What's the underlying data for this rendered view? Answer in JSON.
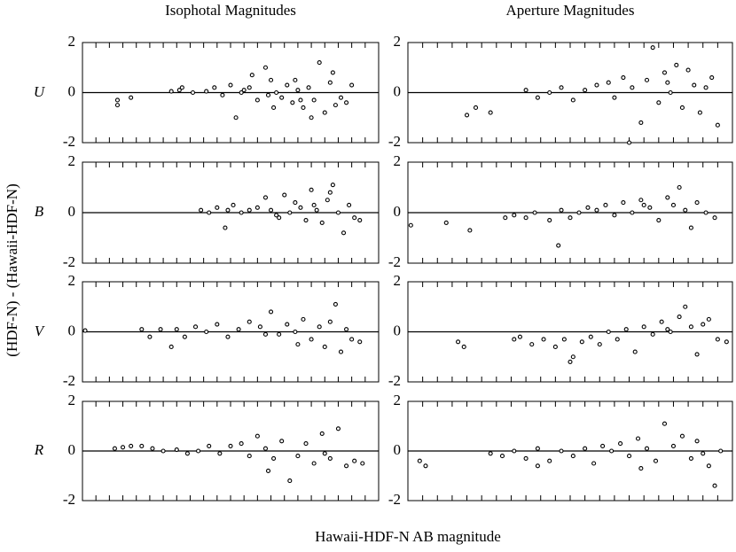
{
  "figure": {
    "column_titles": [
      "Isophotal Magnitudes",
      "Aperture Magnitudes"
    ],
    "row_labels": [
      "U",
      "B",
      "V",
      "R"
    ],
    "ylabel": "(HDF-N) - (Hawaii-HDF-N)",
    "xlabel": "Hawaii-HDF-N AB magnitude"
  },
  "chart_data": [
    {
      "type": "scatter",
      "color": "#000000",
      "xlim": [
        19,
        30
      ],
      "ylim": [
        -2,
        2
      ],
      "yticks": [
        -2,
        0,
        2
      ],
      "xticks": [
        19,
        19.5,
        20,
        20.5,
        21,
        21.5,
        22,
        22.5,
        23,
        23.5,
        24,
        24.5,
        25,
        25.5,
        26,
        26.5,
        27,
        27.5,
        28,
        28.5,
        29,
        29.5,
        30
      ],
      "x": [
        20.3,
        20.3,
        20.8,
        22.3,
        22.6,
        22.7,
        23.1,
        23.6,
        23.9,
        24.2,
        24.5,
        24.7,
        25.0,
        25.2,
        25.5,
        25.8,
        26.0,
        26.2,
        26.4,
        26.6,
        26.8,
        27.0,
        27.2,
        27.4,
        27.6,
        27.8,
        28.0,
        28.2,
        28.4,
        28.6,
        28.8,
        29.0,
        25.3,
        26.1,
        26.9,
        27.5,
        28.3,
        24.9,
        25.9,
        27.1
      ],
      "values": [
        -0.3,
        -0.5,
        -0.2,
        0.05,
        0.1,
        0.2,
        0.0,
        0.05,
        0.2,
        -0.1,
        0.3,
        -1.0,
        0.1,
        0.2,
        -0.3,
        1.0,
        0.5,
        0.0,
        -0.2,
        0.3,
        -0.4,
        0.1,
        -0.6,
        0.2,
        -0.3,
        1.2,
        -0.8,
        0.4,
        -0.5,
        -0.2,
        -0.4,
        0.3,
        0.7,
        -0.6,
        0.5,
        -1.0,
        0.8,
        0.0,
        -0.1,
        -0.3
      ]
    },
    {
      "type": "scatter",
      "color": "#000000",
      "xlim": [
        19,
        30
      ],
      "ylim": [
        -2,
        2
      ],
      "yticks": [
        -2,
        0,
        2
      ],
      "xticks": [
        19,
        19.5,
        20,
        20.5,
        21,
        21.5,
        22,
        22.5,
        23,
        23.5,
        24,
        24.5,
        25,
        25.5,
        26,
        26.5,
        27,
        27.5,
        28,
        28.5,
        29,
        29.5,
        30
      ],
      "x": [
        21.0,
        21.3,
        21.8,
        23.0,
        23.4,
        23.8,
        24.2,
        24.6,
        25.0,
        25.4,
        25.8,
        26.0,
        26.3,
        26.6,
        26.9,
        27.1,
        27.3,
        27.5,
        27.7,
        27.9,
        28.1,
        28.3,
        28.5,
        28.7,
        28.9,
        29.1,
        29.3,
        29.5,
        26.5,
        27.8
      ],
      "values": [
        -0.9,
        -0.6,
        -0.8,
        0.1,
        -0.2,
        0.0,
        0.2,
        -0.3,
        0.1,
        0.3,
        0.4,
        -0.2,
        0.6,
        0.2,
        -1.2,
        0.5,
        1.8,
        -0.4,
        0.8,
        0.0,
        1.1,
        -0.6,
        0.9,
        0.3,
        -0.8,
        0.2,
        0.6,
        -1.3,
        -2.0,
        0.4
      ]
    },
    {
      "type": "scatter",
      "color": "#000000",
      "xlim": [
        19,
        30
      ],
      "ylim": [
        -2,
        2
      ],
      "yticks": [
        -2,
        0,
        2
      ],
      "xticks": [
        19,
        19.5,
        20,
        20.5,
        21,
        21.5,
        22,
        22.5,
        23,
        23.5,
        24,
        24.5,
        25,
        25.5,
        26,
        26.5,
        27,
        27.5,
        28,
        28.5,
        29,
        29.5,
        30
      ],
      "x": [
        23.4,
        23.7,
        24.0,
        24.3,
        24.4,
        24.6,
        24.9,
        25.2,
        25.5,
        25.8,
        26.0,
        26.3,
        26.5,
        26.7,
        26.9,
        27.1,
        27.3,
        27.5,
        27.7,
        27.9,
        28.1,
        28.3,
        28.5,
        28.7,
        28.9,
        29.1,
        29.3,
        26.2,
        27.6,
        28.2
      ],
      "values": [
        0.1,
        0.0,
        0.2,
        -0.6,
        0.1,
        0.3,
        0.0,
        0.1,
        0.2,
        0.6,
        0.1,
        -0.2,
        0.7,
        0.0,
        0.4,
        0.2,
        -0.3,
        0.9,
        0.1,
        -0.4,
        0.5,
        1.1,
        0.0,
        -0.8,
        0.3,
        -0.2,
        -0.3,
        -0.1,
        0.3,
        0.8
      ]
    },
    {
      "type": "scatter",
      "color": "#000000",
      "xlim": [
        19,
        30
      ],
      "ylim": [
        -2,
        2
      ],
      "yticks": [
        -2,
        0,
        2
      ],
      "xticks": [
        19,
        19.5,
        20,
        20.5,
        21,
        21.5,
        22,
        22.5,
        23,
        23.5,
        24,
        24.5,
        25,
        25.5,
        26,
        26.5,
        27,
        27.5,
        28,
        28.5,
        29,
        29.5,
        30
      ],
      "x": [
        19.1,
        20.3,
        21.1,
        22.3,
        22.6,
        23.0,
        23.3,
        23.8,
        24.2,
        24.5,
        24.8,
        25.1,
        25.4,
        25.7,
        26.0,
        26.3,
        26.6,
        26.9,
        27.2,
        27.5,
        27.8,
        28.0,
        28.2,
        28.4,
        28.6,
        28.8,
        29.1,
        29.4,
        24.1,
        27.0
      ],
      "values": [
        -0.5,
        -0.4,
        -0.7,
        -0.2,
        -0.1,
        -0.2,
        0.0,
        -0.3,
        0.1,
        -0.2,
        0.0,
        0.2,
        0.1,
        0.3,
        -0.1,
        0.4,
        0.0,
        0.5,
        0.2,
        -0.3,
        0.6,
        0.3,
        1.0,
        0.1,
        -0.6,
        0.4,
        0.0,
        -0.2,
        -1.3,
        0.3
      ]
    },
    {
      "type": "scatter",
      "color": "#000000",
      "xlim": [
        19,
        30
      ],
      "ylim": [
        -2,
        2
      ],
      "yticks": [
        -2,
        0,
        2
      ],
      "xticks": [
        19,
        19.5,
        20,
        20.5,
        21,
        21.5,
        22,
        22.5,
        23,
        23.5,
        24,
        24.5,
        25,
        25.5,
        26,
        26.5,
        27,
        27.5,
        28,
        28.5,
        29,
        29.5,
        30
      ],
      "x": [
        19.1,
        21.2,
        21.5,
        21.9,
        22.3,
        22.5,
        22.8,
        23.2,
        23.6,
        24.0,
        24.4,
        24.8,
        25.2,
        25.6,
        26.0,
        26.3,
        26.6,
        26.9,
        27.2,
        27.5,
        27.8,
        28.0,
        28.2,
        28.4,
        28.6,
        28.8,
        29.0,
        29.3,
        25.8,
        27.0
      ],
      "values": [
        0.05,
        0.1,
        -0.2,
        0.1,
        -0.6,
        0.1,
        -0.2,
        0.2,
        0.0,
        0.3,
        -0.2,
        0.1,
        0.4,
        0.2,
        0.8,
        -0.1,
        0.3,
        0.0,
        0.5,
        -0.3,
        0.2,
        -0.6,
        0.4,
        1.1,
        -0.8,
        0.1,
        -0.3,
        -0.4,
        -0.1,
        -0.5
      ]
    },
    {
      "type": "scatter",
      "color": "#000000",
      "xlim": [
        19,
        30
      ],
      "ylim": [
        -2,
        2
      ],
      "yticks": [
        -2,
        0,
        2
      ],
      "xticks": [
        19,
        19.5,
        20,
        20.5,
        21,
        21.5,
        22,
        22.5,
        23,
        23.5,
        24,
        24.5,
        25,
        25.5,
        26,
        26.5,
        27,
        27.5,
        28,
        28.5,
        29,
        29.5,
        30
      ],
      "x": [
        20.7,
        20.9,
        22.6,
        22.8,
        23.2,
        23.6,
        24.0,
        24.3,
        24.6,
        24.9,
        25.2,
        25.5,
        25.8,
        26.1,
        26.4,
        26.7,
        27.0,
        27.3,
        27.6,
        27.9,
        28.2,
        28.4,
        28.6,
        28.8,
        29.0,
        29.2,
        29.5,
        29.8,
        24.5,
        27.8
      ],
      "values": [
        -0.4,
        -0.6,
        -0.3,
        -0.2,
        -0.5,
        -0.3,
        -0.6,
        -0.3,
        -1.0,
        -0.4,
        -0.2,
        -0.5,
        0.0,
        -0.3,
        0.1,
        -0.8,
        0.2,
        -0.1,
        0.4,
        0.0,
        0.6,
        1.0,
        0.2,
        -0.9,
        0.3,
        0.5,
        -0.3,
        -0.4,
        -1.2,
        0.1
      ]
    },
    {
      "type": "scatter",
      "color": "#000000",
      "xlim": [
        19,
        30
      ],
      "ylim": [
        -2,
        2
      ],
      "yticks": [
        -2,
        0,
        2
      ],
      "xticks": [
        19,
        19.5,
        20,
        20.5,
        21,
        21.5,
        22,
        22.5,
        23,
        23.5,
        24,
        24.5,
        25,
        25.5,
        26,
        26.5,
        27,
        27.5,
        28,
        28.5,
        29,
        29.5,
        30
      ],
      "x": [
        20.2,
        20.5,
        20.8,
        21.2,
        21.6,
        22.0,
        22.5,
        22.9,
        23.3,
        23.7,
        24.1,
        24.5,
        24.9,
        25.2,
        25.5,
        25.8,
        26.1,
        26.4,
        26.7,
        27.0,
        27.3,
        27.6,
        27.9,
        28.2,
        28.5,
        28.8,
        29.1,
        29.4,
        25.9,
        28.0
      ],
      "values": [
        0.1,
        0.15,
        0.2,
        0.2,
        0.1,
        0.0,
        0.05,
        -0.1,
        0.0,
        0.2,
        -0.1,
        0.2,
        0.3,
        -0.2,
        0.6,
        0.1,
        -0.3,
        0.4,
        -1.2,
        -0.2,
        0.3,
        -0.5,
        0.7,
        -0.3,
        0.9,
        -0.6,
        -0.4,
        -0.5,
        -0.8,
        -0.1
      ]
    },
    {
      "type": "scatter",
      "color": "#000000",
      "xlim": [
        19,
        30
      ],
      "ylim": [
        -2,
        2
      ],
      "yticks": [
        -2,
        0,
        2
      ],
      "xticks": [
        19,
        19.5,
        20,
        20.5,
        21,
        21.5,
        22,
        22.5,
        23,
        23.5,
        24,
        24.5,
        25,
        25.5,
        26,
        26.5,
        27,
        27.5,
        28,
        28.5,
        29,
        29.5,
        30
      ],
      "x": [
        19.4,
        19.6,
        21.8,
        22.2,
        22.6,
        23.0,
        23.4,
        23.8,
        24.2,
        24.6,
        25.0,
        25.3,
        25.6,
        25.9,
        26.2,
        26.5,
        26.8,
        27.1,
        27.4,
        27.7,
        28.0,
        28.3,
        28.6,
        28.8,
        29.0,
        29.2,
        29.4,
        29.6,
        23.4,
        26.9
      ],
      "values": [
        -0.4,
        -0.6,
        -0.1,
        -0.2,
        0.0,
        -0.3,
        0.1,
        -0.4,
        0.0,
        -0.2,
        0.1,
        -0.5,
        0.2,
        0.0,
        0.3,
        -0.2,
        0.5,
        0.1,
        -0.4,
        1.1,
        0.2,
        0.6,
        -0.3,
        0.4,
        -0.1,
        -0.6,
        -1.4,
        0.0,
        -0.6,
        -0.7
      ]
    }
  ]
}
